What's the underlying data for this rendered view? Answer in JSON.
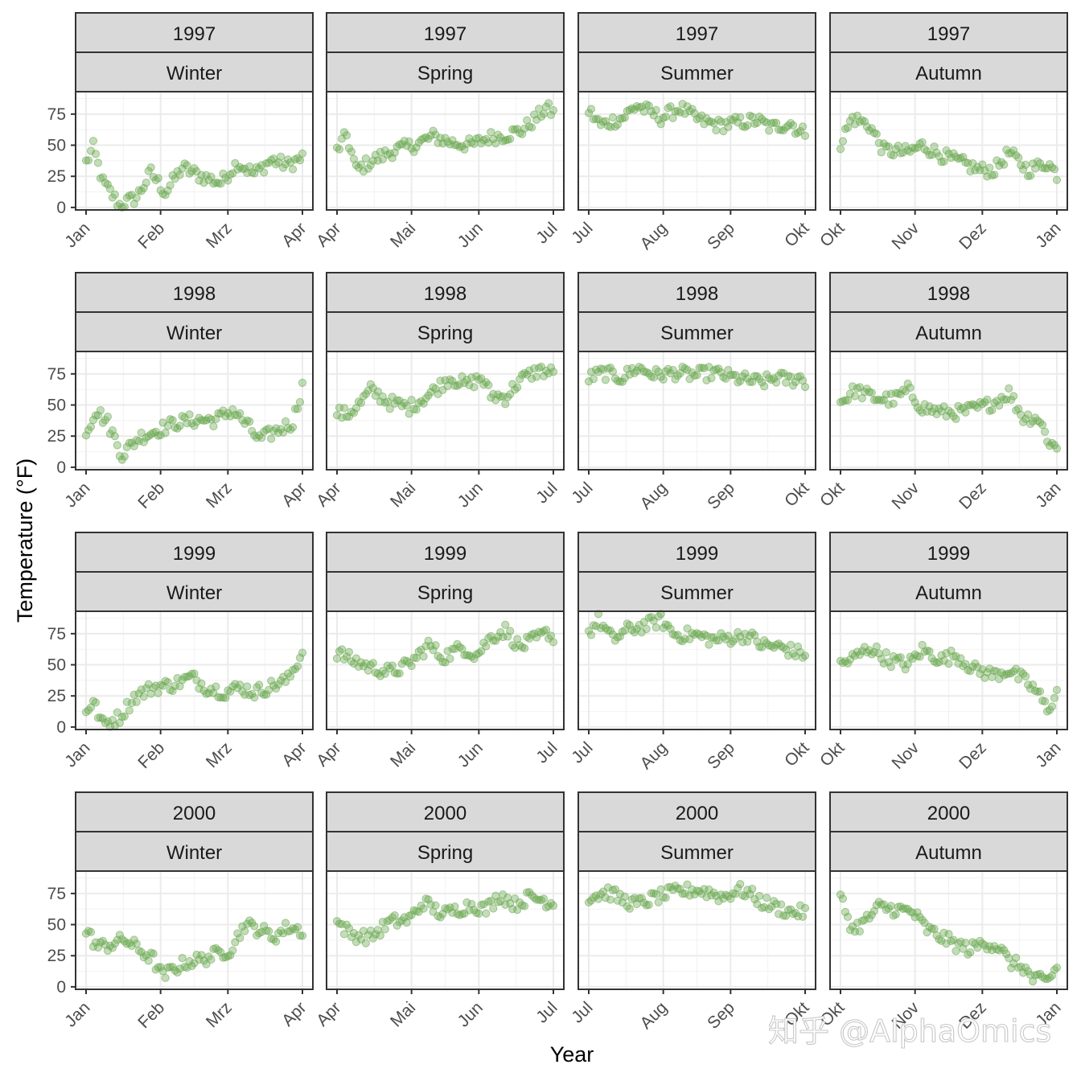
{
  "chart_data": {
    "type": "scatter",
    "xlabel": "Year",
    "ylabel": "Temperature (°F)",
    "ylim": [
      -2,
      93
    ],
    "yticks": [
      0,
      25,
      50,
      75
    ],
    "point_color": "#6aa84f",
    "grid": true,
    "facet_rows": [
      "1997",
      "1998",
      "1999",
      "2000"
    ],
    "seasons": [
      {
        "name": "Winter",
        "months": [
          "Jan",
          "Feb",
          "Mrz",
          "Apr"
        ]
      },
      {
        "name": "Spring",
        "months": [
          "Apr",
          "Mai",
          "Jun",
          "Jul"
        ]
      },
      {
        "name": "Summer",
        "months": [
          "Jul",
          "Aug",
          "Sep",
          "Okt"
        ]
      },
      {
        "name": "Autumn",
        "months": [
          "Okt",
          "Nov",
          "Dez",
          "Jan"
        ]
      }
    ],
    "series": [
      {
        "year": "1997",
        "season": "Winter",
        "anchors": [
          [
            0,
            36
          ],
          [
            3,
            48
          ],
          [
            7,
            20
          ],
          [
            14,
            2
          ],
          [
            21,
            8
          ],
          [
            27,
            28
          ],
          [
            33,
            12
          ],
          [
            40,
            32
          ],
          [
            48,
            25
          ],
          [
            56,
            20
          ],
          [
            63,
            36
          ],
          [
            70,
            27
          ],
          [
            77,
            38
          ],
          [
            84,
            34
          ],
          [
            90,
            40
          ]
        ]
      },
      {
        "year": "1997",
        "season": "Spring",
        "anchors": [
          [
            0,
            46
          ],
          [
            4,
            58
          ],
          [
            8,
            30
          ],
          [
            15,
            38
          ],
          [
            24,
            46
          ],
          [
            32,
            50
          ],
          [
            40,
            57
          ],
          [
            48,
            52
          ],
          [
            56,
            50
          ],
          [
            63,
            56
          ],
          [
            70,
            58
          ],
          [
            77,
            62
          ],
          [
            83,
            72
          ],
          [
            87,
            80
          ],
          [
            91,
            74
          ]
        ]
      },
      {
        "year": "1997",
        "season": "Summer",
        "anchors": [
          [
            0,
            78
          ],
          [
            5,
            66
          ],
          [
            14,
            72
          ],
          [
            20,
            82
          ],
          [
            30,
            72
          ],
          [
            38,
            80
          ],
          [
            46,
            70
          ],
          [
            54,
            66
          ],
          [
            62,
            68
          ],
          [
            70,
            70
          ],
          [
            76,
            64
          ],
          [
            84,
            68
          ],
          [
            88,
            60
          ],
          [
            92,
            62
          ]
        ]
      },
      {
        "year": "1997",
        "season": "Autumn",
        "anchors": [
          [
            0,
            52
          ],
          [
            5,
            72
          ],
          [
            12,
            66
          ],
          [
            18,
            46
          ],
          [
            28,
            44
          ],
          [
            34,
            50
          ],
          [
            42,
            42
          ],
          [
            50,
            36
          ],
          [
            58,
            30
          ],
          [
            64,
            30
          ],
          [
            70,
            44
          ],
          [
            78,
            30
          ],
          [
            86,
            36
          ],
          [
            92,
            22
          ]
        ]
      },
      {
        "year": "1998",
        "season": "Winter",
        "anchors": [
          [
            0,
            28
          ],
          [
            4,
            46
          ],
          [
            9,
            36
          ],
          [
            15,
            10
          ],
          [
            22,
            24
          ],
          [
            30,
            30
          ],
          [
            38,
            36
          ],
          [
            46,
            38
          ],
          [
            54,
            38
          ],
          [
            61,
            46
          ],
          [
            67,
            34
          ],
          [
            72,
            22
          ],
          [
            78,
            28
          ],
          [
            86,
            36
          ],
          [
            90,
            65
          ]
        ]
      },
      {
        "year": "1998",
        "season": "Spring",
        "anchors": [
          [
            0,
            44
          ],
          [
            4,
            42
          ],
          [
            10,
            52
          ],
          [
            14,
            62
          ],
          [
            22,
            52
          ],
          [
            30,
            48
          ],
          [
            38,
            58
          ],
          [
            47,
            72
          ],
          [
            54,
            66
          ],
          [
            60,
            72
          ],
          [
            64,
            58
          ],
          [
            70,
            56
          ],
          [
            76,
            70
          ],
          [
            84,
            78
          ],
          [
            91,
            75
          ]
        ]
      },
      {
        "year": "1998",
        "season": "Summer",
        "anchors": [
          [
            0,
            72
          ],
          [
            6,
            76
          ],
          [
            14,
            72
          ],
          [
            20,
            80
          ],
          [
            28,
            74
          ],
          [
            36,
            76
          ],
          [
            44,
            74
          ],
          [
            52,
            76
          ],
          [
            60,
            72
          ],
          [
            66,
            70
          ],
          [
            72,
            68
          ],
          [
            78,
            72
          ],
          [
            84,
            70
          ],
          [
            88,
            72
          ],
          [
            92,
            66
          ]
        ]
      },
      {
        "year": "1998",
        "season": "Autumn",
        "anchors": [
          [
            0,
            52
          ],
          [
            6,
            62
          ],
          [
            14,
            56
          ],
          [
            22,
            54
          ],
          [
            28,
            62
          ],
          [
            34,
            48
          ],
          [
            42,
            44
          ],
          [
            50,
            44
          ],
          [
            58,
            48
          ],
          [
            64,
            52
          ],
          [
            70,
            60
          ],
          [
            76,
            40
          ],
          [
            82,
            40
          ],
          [
            87,
            20
          ],
          [
            92,
            12
          ]
        ]
      },
      {
        "year": "1999",
        "season": "Winter",
        "anchors": [
          [
            0,
            14
          ],
          [
            3,
            20
          ],
          [
            7,
            2
          ],
          [
            14,
            8
          ],
          [
            20,
            24
          ],
          [
            28,
            32
          ],
          [
            36,
            34
          ],
          [
            44,
            40
          ],
          [
            50,
            32
          ],
          [
            58,
            28
          ],
          [
            64,
            32
          ],
          [
            70,
            28
          ],
          [
            76,
            32
          ],
          [
            84,
            38
          ],
          [
            90,
            60
          ]
        ]
      },
      {
        "year": "1999",
        "season": "Spring",
        "anchors": [
          [
            0,
            60
          ],
          [
            6,
            54
          ],
          [
            14,
            48
          ],
          [
            22,
            44
          ],
          [
            30,
            50
          ],
          [
            38,
            66
          ],
          [
            44,
            56
          ],
          [
            52,
            64
          ],
          [
            58,
            58
          ],
          [
            64,
            72
          ],
          [
            70,
            78
          ],
          [
            76,
            64
          ],
          [
            82,
            70
          ],
          [
            88,
            76
          ],
          [
            91,
            68
          ]
        ]
      },
      {
        "year": "1999",
        "season": "Summer",
        "anchors": [
          [
            0,
            76
          ],
          [
            4,
            86
          ],
          [
            10,
            70
          ],
          [
            16,
            78
          ],
          [
            24,
            82
          ],
          [
            30,
            86
          ],
          [
            36,
            74
          ],
          [
            44,
            74
          ],
          [
            52,
            70
          ],
          [
            60,
            72
          ],
          [
            66,
            74
          ],
          [
            72,
            66
          ],
          [
            80,
            64
          ],
          [
            86,
            60
          ],
          [
            92,
            58
          ]
        ]
      },
      {
        "year": "1999",
        "season": "Autumn",
        "anchors": [
          [
            0,
            50
          ],
          [
            6,
            56
          ],
          [
            12,
            64
          ],
          [
            20,
            54
          ],
          [
            28,
            50
          ],
          [
            34,
            62
          ],
          [
            42,
            54
          ],
          [
            48,
            58
          ],
          [
            56,
            46
          ],
          [
            64,
            42
          ],
          [
            70,
            46
          ],
          [
            76,
            38
          ],
          [
            82,
            28
          ],
          [
            86,
            14
          ],
          [
            92,
            34
          ]
        ]
      },
      {
        "year": "2000",
        "season": "Winter",
        "anchors": [
          [
            0,
            45
          ],
          [
            5,
            32
          ],
          [
            10,
            34
          ],
          [
            16,
            38
          ],
          [
            22,
            30
          ],
          [
            28,
            22
          ],
          [
            32,
            8
          ],
          [
            36,
            14
          ],
          [
            42,
            20
          ],
          [
            48,
            22
          ],
          [
            54,
            26
          ],
          [
            60,
            30
          ],
          [
            66,
            50
          ],
          [
            72,
            46
          ],
          [
            78,
            40
          ],
          [
            84,
            48
          ],
          [
            90,
            45
          ]
        ]
      },
      {
        "year": "2000",
        "season": "Spring",
        "anchors": [
          [
            0,
            52
          ],
          [
            6,
            42
          ],
          [
            14,
            40
          ],
          [
            22,
            52
          ],
          [
            30,
            54
          ],
          [
            36,
            68
          ],
          [
            44,
            58
          ],
          [
            50,
            62
          ],
          [
            56,
            66
          ],
          [
            62,
            62
          ],
          [
            68,
            74
          ],
          [
            74,
            66
          ],
          [
            80,
            72
          ],
          [
            86,
            70
          ],
          [
            91,
            66
          ]
        ]
      },
      {
        "year": "2000",
        "season": "Summer",
        "anchors": [
          [
            0,
            72
          ],
          [
            8,
            76
          ],
          [
            14,
            70
          ],
          [
            20,
            66
          ],
          [
            28,
            72
          ],
          [
            36,
            76
          ],
          [
            44,
            78
          ],
          [
            50,
            76
          ],
          [
            56,
            72
          ],
          [
            62,
            78
          ],
          [
            66,
            76
          ],
          [
            72,
            68
          ],
          [
            78,
            64
          ],
          [
            84,
            60
          ],
          [
            92,
            60
          ]
        ]
      },
      {
        "year": "2000",
        "season": "Autumn",
        "anchors": [
          [
            0,
            72
          ],
          [
            5,
            46
          ],
          [
            10,
            52
          ],
          [
            16,
            64
          ],
          [
            24,
            62
          ],
          [
            30,
            60
          ],
          [
            36,
            46
          ],
          [
            42,
            40
          ],
          [
            48,
            34
          ],
          [
            54,
            30
          ],
          [
            60,
            36
          ],
          [
            66,
            32
          ],
          [
            70,
            20
          ],
          [
            76,
            16
          ],
          [
            80,
            6
          ],
          [
            86,
            4
          ],
          [
            90,
            16
          ],
          [
            92,
            26
          ]
        ]
      }
    ]
  },
  "watermark": "知乎 @AlphaOmics"
}
